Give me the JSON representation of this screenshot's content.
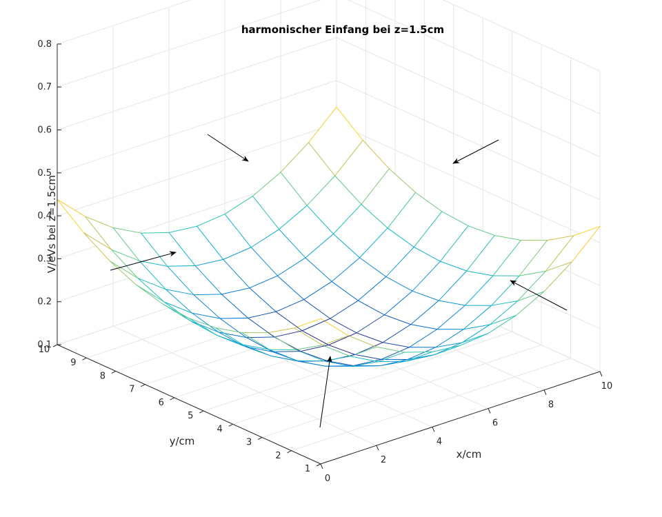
{
  "chart_data": {
    "type": "surface",
    "title": "harmonischer Einfang bei z=1.5cm",
    "xlabel": "x/cm",
    "ylabel": "y/cm",
    "zlabel": "V/eVs bei z=1.5cm",
    "x": [
      0,
      1,
      2,
      3,
      4,
      5,
      6,
      7,
      8,
      9,
      10
    ],
    "y": [
      1,
      1.9,
      2.8,
      3.7,
      4.6,
      5.5,
      6.4,
      7.3,
      8.2,
      9.1,
      10
    ],
    "z_model": "z = 0.1305 + 0.0068*((x-5)^2 + (y-5.5)^2)",
    "xlim": [
      0,
      10
    ],
    "ylim": [
      1,
      10
    ],
    "zlim": [
      0.1,
      0.8
    ],
    "xticks": [
      "0",
      "2",
      "4",
      "6",
      "8",
      "10"
    ],
    "yticks": [
      "1",
      "2",
      "3",
      "4",
      "5",
      "6",
      "7",
      "8",
      "9",
      "10"
    ],
    "zticks": [
      "0.1",
      "0.2",
      "0.3",
      "0.4",
      "0.5",
      "0.6",
      "0.7",
      "0.8"
    ],
    "grid": true,
    "colormap": "parula",
    "arrows": 6
  }
}
